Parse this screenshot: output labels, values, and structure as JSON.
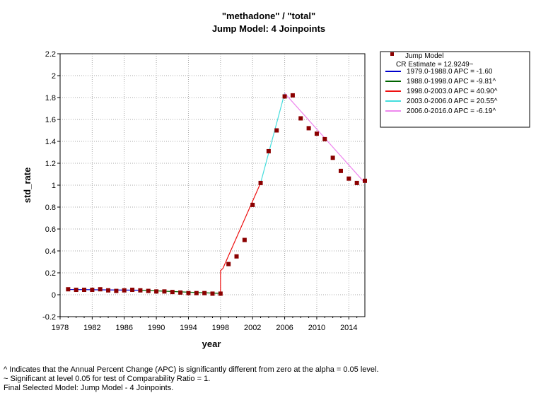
{
  "colors": {
    "points": "#8b0000",
    "seg1": "#0000cc",
    "seg2": "#006400",
    "seg3": "#ee1111",
    "seg4": "#44dddd",
    "seg5": "#ee88ee",
    "grid": "#aaaaaa"
  },
  "chart_data": {
    "type": "line",
    "title": "\"methadone\" / \"total\"",
    "subtitle": "Jump Model: 4 Joinpoints",
    "xlabel": "year",
    "ylabel": "std_rate",
    "xlim": [
      1978,
      2016
    ],
    "ylim": [
      -0.2,
      2.2
    ],
    "xticks": [
      1978,
      1982,
      1986,
      1990,
      1994,
      1998,
      2002,
      2006,
      2010,
      2014
    ],
    "yticks": [
      -0.2,
      0,
      0.2,
      0.4,
      0.6,
      0.8,
      1,
      1.2,
      1.4,
      1.6,
      1.8,
      2,
      2.2
    ],
    "ytick_labels": [
      "-0.2",
      "0",
      "0.2",
      "0.4",
      "0.6",
      "0.8",
      "1",
      "1.2",
      "1.4",
      "1.6",
      "1.8",
      "2",
      "2.2"
    ],
    "grid": true,
    "legend_position": "right",
    "observed": {
      "name": "Jump Model",
      "x": [
        1979,
        1980,
        1981,
        1982,
        1983,
        1984,
        1985,
        1986,
        1987,
        1988,
        1989,
        1990,
        1991,
        1992,
        1993,
        1994,
        1995,
        1996,
        1997,
        1998,
        1999,
        2000,
        2001,
        2002,
        2003,
        2004,
        2005,
        2006,
        2007,
        2008,
        2009,
        2010,
        2011,
        2012,
        2013,
        2014,
        2015,
        2016
      ],
      "y": [
        0.05,
        0.045,
        0.045,
        0.045,
        0.05,
        0.04,
        0.035,
        0.04,
        0.045,
        0.04,
        0.035,
        0.03,
        0.03,
        0.025,
        0.02,
        0.015,
        0.015,
        0.015,
        0.01,
        0.01,
        0.28,
        0.35,
        0.5,
        0.82,
        1.02,
        1.31,
        1.5,
        1.81,
        1.82,
        1.61,
        1.52,
        1.47,
        1.42,
        1.25,
        1.13,
        1.06,
        1.02,
        1.04
      ]
    },
    "segments": [
      {
        "name": "1979.0-1988.0 APC  = -1.60",
        "color": "#0000cc",
        "x": [
          1979,
          1988
        ],
        "y": [
          0.048,
          0.041
        ]
      },
      {
        "name": "1988.0-1998.0 APC  = -9.81^",
        "color": "#006400",
        "x": [
          1988,
          1998
        ],
        "y": [
          0.041,
          0.012
        ]
      },
      {
        "name": "1998.0-2003.0 APC  = 40.90^",
        "color": "#ee1111",
        "x": [
          1998,
          1998,
          1998.3,
          2003
        ],
        "y": [
          0.012,
          0.22,
          0.24,
          1.02
        ]
      },
      {
        "name": "2003.0-2006.0 APC  = 20.55^",
        "color": "#44dddd",
        "x": [
          2003,
          2006
        ],
        "y": [
          1.02,
          1.84
        ]
      },
      {
        "name": "2006.0-2016.0 APC  = -6.19^",
        "color": "#ee88ee",
        "x": [
          2006,
          2016
        ],
        "y": [
          1.84,
          1.02
        ]
      }
    ],
    "legend": {
      "marker_label": "Jump Model",
      "cr_label": "CR Estimate = 12.9249~"
    }
  },
  "footnotes": [
    "^ Indicates that the Annual Percent Change (APC) is significantly different from zero at the alpha = 0.05 level.",
    "~ Significant at level 0.05 for test of Comparability Ratio = 1.",
    "Final Selected Model: Jump Model - 4 Joinpoints."
  ]
}
